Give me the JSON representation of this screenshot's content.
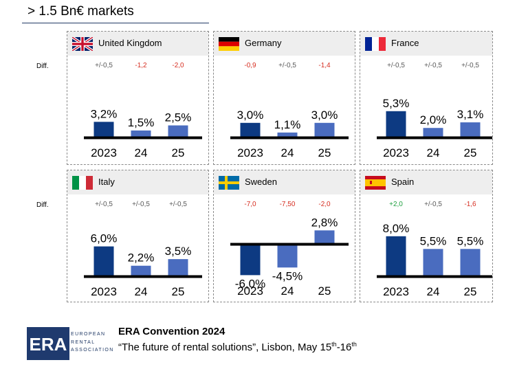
{
  "title": "> 1.5 Bn€ markets",
  "diff_label": "Diff.",
  "colors": {
    "first_bar": "#0d3a82",
    "other_bars": "#4a6cbf",
    "neutral_diff": "#595959",
    "negative_diff": "#d62d20",
    "positive_diff": "#20a040"
  },
  "chart_data": [
    {
      "type": "bar",
      "country": "United Kingdom",
      "flag": "uk-flag",
      "categories": [
        "2023",
        "24",
        "25"
      ],
      "values": [
        3.2,
        1.5,
        2.5
      ],
      "labels": [
        "3,2%",
        "1,5%",
        "2,5%"
      ],
      "diffs": [
        "+/-0,5",
        "-1,2",
        "-2,0"
      ],
      "diff_tone": [
        "neutral",
        "negative",
        "negative"
      ]
    },
    {
      "type": "bar",
      "country": "Germany",
      "flag": "de-flag",
      "categories": [
        "2023",
        "24",
        "25"
      ],
      "values": [
        3.0,
        1.1,
        3.0
      ],
      "labels": [
        "3,0%",
        "1,1%",
        "3,0%"
      ],
      "diffs": [
        "-0,9",
        "+/-0,5",
        "-1,4"
      ],
      "diff_tone": [
        "negative",
        "neutral",
        "negative"
      ]
    },
    {
      "type": "bar",
      "country": "France",
      "flag": "fr-flag",
      "categories": [
        "2023",
        "24",
        "25"
      ],
      "values": [
        5.3,
        2.0,
        3.1
      ],
      "labels": [
        "5,3%",
        "2,0%",
        "3,1%"
      ],
      "diffs": [
        "+/-0,5",
        "+/-0,5",
        "+/-0,5"
      ],
      "diff_tone": [
        "neutral",
        "neutral",
        "neutral"
      ]
    },
    {
      "type": "bar",
      "country": "Italy",
      "flag": "it-flag",
      "categories": [
        "2023",
        "24",
        "25"
      ],
      "values": [
        6.0,
        2.2,
        3.5
      ],
      "labels": [
        "6,0%",
        "2,2%",
        "3,5%"
      ],
      "diffs": [
        "+/-0,5",
        "+/-0,5",
        "+/-0,5"
      ],
      "diff_tone": [
        "neutral",
        "neutral",
        "neutral"
      ]
    },
    {
      "type": "bar",
      "country": "Sweden",
      "flag": "se-flag",
      "categories": [
        "2023",
        "24",
        "25"
      ],
      "values": [
        -6.0,
        -4.5,
        2.8
      ],
      "labels": [
        "-6,0%",
        "-4,5%",
        "2,8%"
      ],
      "diffs": [
        "-7,0",
        "-7,50",
        "-2,0"
      ],
      "diff_tone": [
        "negative",
        "negative",
        "negative"
      ]
    },
    {
      "type": "bar",
      "country": "Spain",
      "flag": "es-flag",
      "categories": [
        "2023",
        "24",
        "25"
      ],
      "values": [
        8.0,
        5.5,
        5.5
      ],
      "labels": [
        "8,0%",
        "5,5%",
        "5,5%"
      ],
      "diffs": [
        "+2,0",
        "+/-0,5",
        "-1,6"
      ],
      "diff_tone": [
        "positive",
        "neutral",
        "negative"
      ]
    }
  ],
  "footer": {
    "logo_letters": "ERA",
    "logo_lines": [
      "EUROPEAN",
      "RENTAL",
      "ASSOCIATION"
    ],
    "title": "ERA Convention 2024",
    "subtitle_main": "“The future of rental solutions”, Lisbon, May 15",
    "sup1": "th",
    "subtitle_mid": "-16",
    "sup2": "th"
  }
}
